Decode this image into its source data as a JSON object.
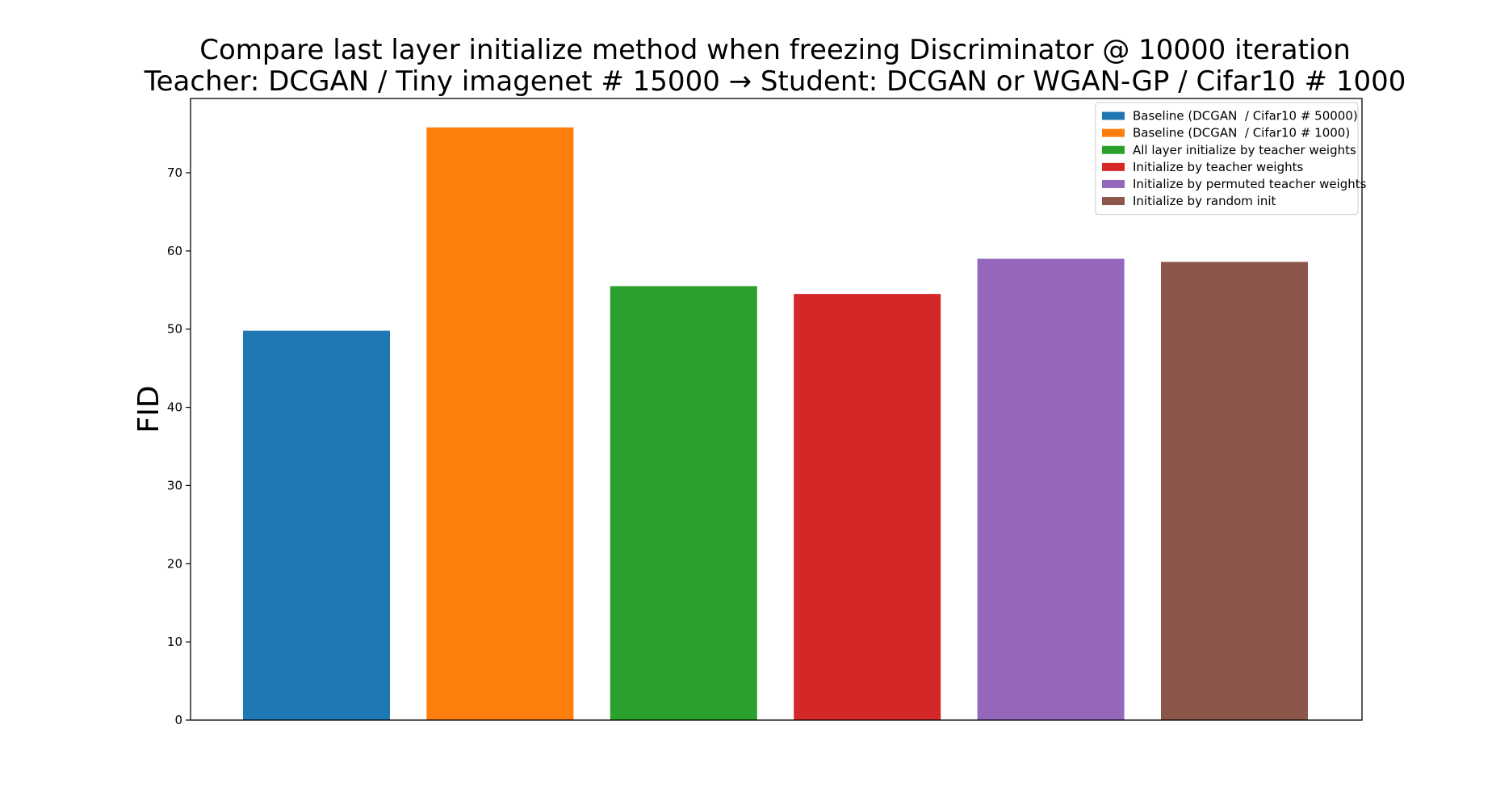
{
  "chart_data": {
    "type": "bar",
    "title": "Compare last layer initialize method when freezing Discriminator @ 10000 iteration",
    "subtitle": "Teacher: DCGAN / Tiny imagenet # 15000 → Student: DCGAN or WGAN-GP / Cifar10 # 1000",
    "xlabel": "",
    "ylabel": "FID",
    "ylim": [
      0,
      79.5
    ],
    "yticks": [
      0,
      10,
      20,
      30,
      40,
      50,
      60,
      70
    ],
    "grid": false,
    "legend_position": "top-right",
    "series": [
      {
        "name": "Baseline (DCGAN  / Cifar10 # 50000)",
        "value": 49.8,
        "color": "#1f77b4"
      },
      {
        "name": "Baseline (DCGAN  / Cifar10 # 1000)",
        "value": 75.8,
        "color": "#ff7f0e"
      },
      {
        "name": "All layer initialize by teacher weights",
        "value": 55.5,
        "color": "#2ca02c"
      },
      {
        "name": "Initialize by teacher weights",
        "value": 54.5,
        "color": "#d62728"
      },
      {
        "name": "Initialize by permuted teacher weights",
        "value": 59.0,
        "color": "#9467bd"
      },
      {
        "name": "Initialize by random init",
        "value": 58.6,
        "color": "#8c564b"
      }
    ]
  }
}
